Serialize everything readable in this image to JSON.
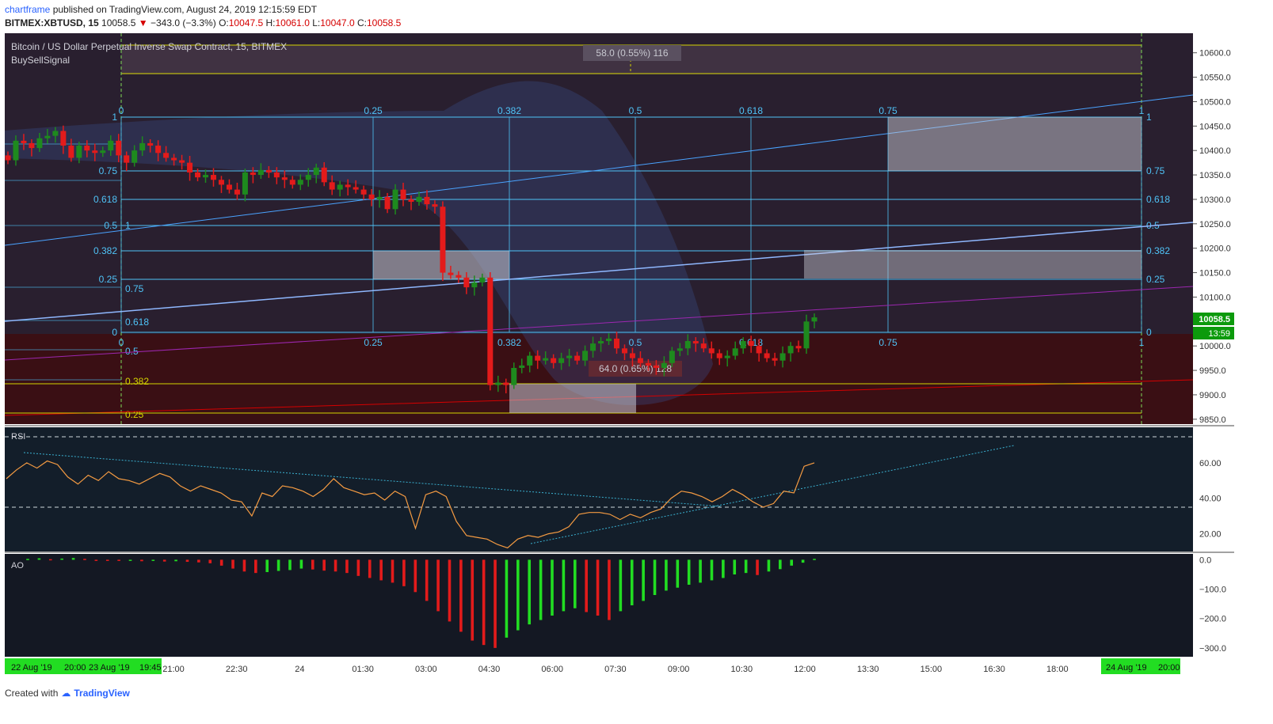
{
  "header": {
    "publisher": "chartframe",
    "published_text": "published on TradingView.com, August 24, 2019 12:15:59 EDT",
    "symbol": "BITMEX:XBTUSD, 15",
    "last": "10058.5",
    "change": "−343.0 (−3.3%)",
    "o_label": "O:",
    "o": "10047.5",
    "h_label": "H:",
    "h": "10061.0",
    "l_label": "L:",
    "l": "10047.0",
    "c_label": "C:",
    "c": "10058.5"
  },
  "footer": {
    "created_with": "Created with",
    "brand": "TradingView"
  },
  "colors": {
    "bg": "#131722",
    "up": "#1e8a1e",
    "down": "#e31b1b",
    "fib_line": "#4fc3f7",
    "yellow": "#d4d400",
    "rsi": "#f59b42",
    "ao_up": "#22dd22",
    "ao_down": "#e31b1b",
    "price_badge": "#0c9a0c"
  },
  "chart_data": [
    {
      "type": "candlestick",
      "title": "Bitcoin / US Dollar Perpetual Inverse Swap Contract, 15, BITMEX",
      "indicator_label": "BuySellSignal",
      "y_range": [
        9840,
        10640
      ],
      "y_ticks": [
        10600,
        10550,
        10500,
        10450,
        10400,
        10350,
        10300,
        10250,
        10200,
        10150,
        10100,
        10050,
        10000,
        9950,
        9900,
        9850
      ],
      "y_tick_labels": [
        "10600.0",
        "10550.0",
        "10500.0",
        "10450.0",
        "10400.0",
        "10350.0",
        "10300.0",
        "10250.0",
        "10200.0",
        "10150.0",
        "10100.0",
        "10050.0",
        "10000.0",
        "9950.0",
        "9900.0",
        "9850.0"
      ],
      "x_ticks": [
        "21:00",
        "22:30",
        "24",
        "01:30",
        "03:00",
        "04:30",
        "06:00",
        "07:30",
        "09:00",
        "10:30",
        "12:00",
        "13:30",
        "15:00",
        "16:30",
        "18:00"
      ],
      "x_badges": [
        "22 Aug '19",
        "20:00",
        "23 Aug '19",
        "19:45",
        "24 Aug '19",
        "20:00"
      ],
      "last_price": "10058.5",
      "countdown": "13:59",
      "annotations": [
        "58.0 (0.55%) 116",
        "64.0 (0.65%) 128"
      ],
      "fib_levels_upper": [
        "0",
        "0.25",
        "0.382",
        "0.5",
        "0.618",
        "0.75",
        "1"
      ],
      "fib_left_labels": [
        "1",
        "0.75",
        "0.618",
        "0.5",
        "0.382",
        "0.25",
        "0"
      ],
      "fib_right_labels": [
        "1",
        "0.75",
        "0.618",
        "0.5",
        "0.382",
        "0.25",
        "0"
      ],
      "fib_left_lower": [
        "1",
        "0.75",
        "0.618",
        "0.5",
        "0.382",
        "0.25"
      ],
      "fib_values_right": [
        10472,
        10362,
        10305,
        10252,
        10200,
        10143,
        10027
      ],
      "closes": [
        10380,
        10420,
        10415,
        10405,
        10425,
        10430,
        10440,
        10410,
        10385,
        10410,
        10400,
        10395,
        10400,
        10420,
        10390,
        10375,
        10400,
        10415,
        10410,
        10395,
        10385,
        10380,
        10375,
        10355,
        10345,
        10350,
        10340,
        10330,
        10320,
        10310,
        10355,
        10350,
        10360,
        10355,
        10345,
        10340,
        10330,
        10340,
        10350,
        10365,
        10335,
        10320,
        10330,
        10325,
        10320,
        10310,
        10300,
        10305,
        10280,
        10320,
        10300,
        10295,
        10305,
        10290,
        10285,
        10150,
        10145,
        10140,
        10120,
        10130,
        10140,
        9920,
        9925,
        9920,
        9955,
        9960,
        9980,
        9970,
        9975,
        9965,
        9975,
        9980,
        9970,
        9990,
        10005,
        10010,
        10015,
        9995,
        9985,
        9975,
        9965,
        9960,
        9955,
        9965,
        9990,
        9995,
        10010,
        10005,
        9995,
        9985,
        9975,
        9980,
        9995,
        10010,
        10000,
        9985,
        9975,
        9970,
        9985,
        10000,
        9995,
        10050,
        10058.5
      ]
    },
    {
      "type": "line",
      "title": "RSI",
      "y_range": [
        10,
        80
      ],
      "y_ticks": [
        60,
        40,
        20
      ],
      "y_tick_labels": [
        "60.00",
        "40.00",
        "20.00"
      ],
      "bands": [
        70,
        30
      ],
      "values": [
        51,
        56,
        60,
        57,
        61,
        59,
        52,
        48,
        53,
        50,
        55,
        51,
        50,
        48,
        51,
        54,
        52,
        47,
        44,
        47,
        45,
        43,
        39,
        38,
        30,
        43,
        41,
        47,
        46,
        44,
        41,
        45,
        51,
        46,
        44,
        42,
        43,
        39,
        44,
        41,
        23,
        42,
        44,
        41,
        27,
        19,
        18,
        17,
        14,
        12,
        17,
        19,
        18,
        20,
        21,
        24,
        31,
        32,
        32,
        31,
        28,
        31,
        29,
        32,
        34,
        40,
        44,
        43,
        41,
        38,
        41,
        45,
        42,
        38,
        35,
        37,
        44,
        43,
        58,
        60
      ]
    },
    {
      "type": "bar",
      "title": "AO",
      "y_range": [
        -330,
        20
      ],
      "y_ticks": [
        0,
        -100,
        -200,
        -300
      ],
      "y_tick_labels": [
        "0.0",
        "−100.0",
        "−200.0",
        "−300.0"
      ],
      "values": [
        3,
        5,
        2,
        4,
        6,
        3,
        -2,
        -3,
        -4,
        -3,
        -5,
        -4,
        -6,
        -5,
        -7,
        -9,
        -12,
        -20,
        -30,
        -40,
        -45,
        -42,
        -38,
        -35,
        -30,
        -33,
        -37,
        -40,
        -45,
        -55,
        -62,
        -70,
        -78,
        -90,
        -110,
        -140,
        -175,
        -210,
        -245,
        -275,
        -290,
        -300,
        -265,
        -240,
        -220,
        -205,
        -190,
        -175,
        -165,
        -178,
        -190,
        -205,
        -175,
        -155,
        -140,
        -120,
        -105,
        -95,
        -85,
        -78,
        -70,
        -62,
        -50,
        -45,
        -52,
        -40,
        -32,
        -20,
        -10,
        3
      ]
    }
  ]
}
